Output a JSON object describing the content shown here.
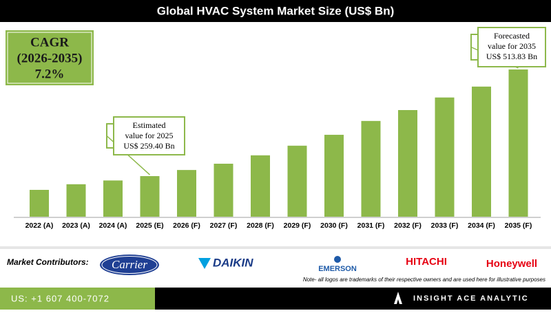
{
  "header": {
    "title": "Global HVAC System Market Size (US$ Bn)"
  },
  "cagr": {
    "label": "CAGR",
    "period": "(2026-2035)",
    "value": "7.2%"
  },
  "chart_data": {
    "type": "bar",
    "categories": [
      "2022 (A)",
      "2023 (A)",
      "2024 (A)",
      "2025 (E)",
      "2026 (F)",
      "2027 (F)",
      "2028 (F)",
      "2029 (F)",
      "2030 (F)",
      "2031 (F)",
      "2032 (F)",
      "2033 (F)",
      "2034 (F)",
      "2035 (F)"
    ],
    "values": [
      226.6,
      240,
      249,
      259.4,
      274,
      289,
      309,
      332,
      358,
      391,
      417,
      447,
      473,
      513.83
    ],
    "value_labels": [
      null,
      null,
      null,
      "US$ 259.40 Bn",
      null,
      null,
      null,
      null,
      null,
      null,
      null,
      null,
      null,
      "US$ 513.83 Bn"
    ],
    "annotations": [
      {
        "category": 3,
        "text": [
          "Estimated",
          "value for 2025"
        ]
      },
      {
        "category": 13,
        "text": [
          "Forecasted",
          "value for 2035"
        ]
      }
    ],
    "color": "#8db84a"
  },
  "contributors": {
    "label": "Market Contributors:",
    "logos": [
      "Carrier",
      "DAIKIN",
      "EMERSON",
      "HITACHI",
      "Honeywell"
    ],
    "note": "Note- all logos are trademarks of their respective owners and are used here for illustrative purposes"
  },
  "footer": {
    "phone": "US: +1 607 400-7072",
    "brand": "INSIGHT ACE ANALYTIC"
  }
}
